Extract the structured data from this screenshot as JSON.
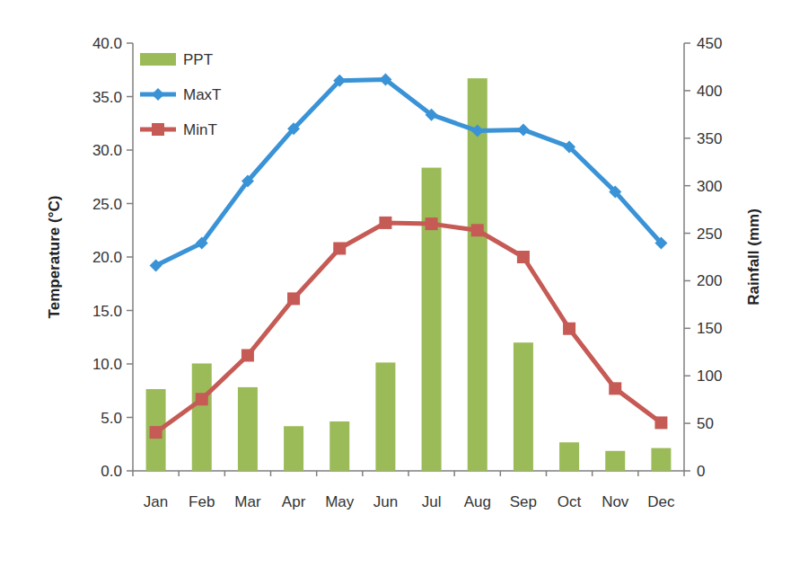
{
  "chart_data": {
    "type": "bar",
    "categories": [
      "Jan",
      "Feb",
      "Mar",
      "Apr",
      "May",
      "Jun",
      "Jul",
      "Aug",
      "Sep",
      "Oct",
      "Nov",
      "Dec"
    ],
    "series": [
      {
        "name": "PPT",
        "type": "bar",
        "axis": "y2",
        "color": "#9bbb59",
        "values": [
          86,
          113,
          88,
          47,
          52,
          114,
          319,
          413,
          135,
          30,
          21,
          24
        ]
      },
      {
        "name": "MaxT",
        "type": "line",
        "color": "#3a93d6",
        "marker": "diamond",
        "line_style": "solid",
        "values": [
          19.2,
          21.3,
          27.1,
          32.0,
          36.5,
          36.6,
          33.3,
          31.8,
          31.9,
          30.3,
          26.1,
          21.3
        ]
      },
      {
        "name": "MinT",
        "type": "line",
        "color": "#c65a55",
        "marker": "square",
        "line_style": "solid",
        "values": [
          3.6,
          6.7,
          10.8,
          16.1,
          20.8,
          23.2,
          23.1,
          22.5,
          20.0,
          13.3,
          7.7,
          4.5
        ]
      }
    ],
    "ylabel": "Temperature (°C)",
    "y2label": "Rainfall (mm)",
    "ylim": [
      0,
      40
    ],
    "yticks": [
      {
        "value": 0,
        "label": "0.0"
      },
      {
        "value": 5,
        "label": "5.0"
      },
      {
        "value": 10,
        "label": "10.0"
      },
      {
        "value": 15,
        "label": "15.0"
      },
      {
        "value": 20,
        "label": "20.0"
      },
      {
        "value": 25,
        "label": "25.0"
      },
      {
        "value": 30,
        "label": "30.0"
      },
      {
        "value": 35,
        "label": "35.0"
      },
      {
        "value": 40,
        "label": "40.0"
      }
    ],
    "y2lim": [
      0,
      450
    ],
    "y2ticks": [
      0,
      50,
      100,
      150,
      200,
      250,
      300,
      350,
      400,
      450
    ],
    "grid": false,
    "legend": "upper left"
  }
}
